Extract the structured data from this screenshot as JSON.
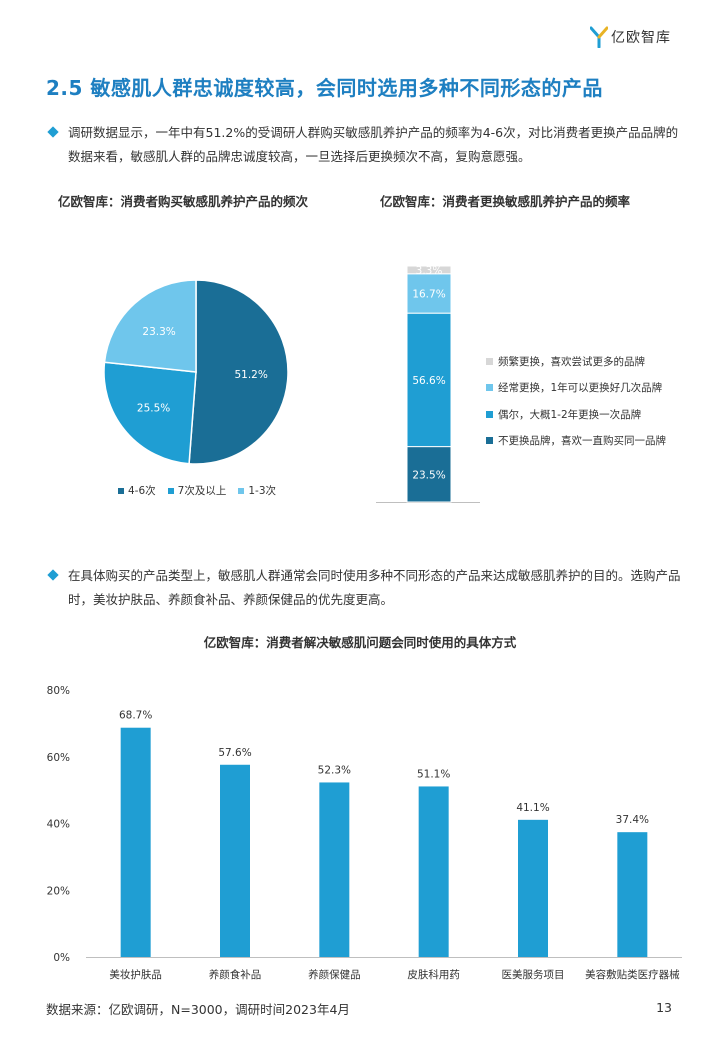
{
  "brand": {
    "logo_text": "亿欧智库",
    "colors": {
      "dark": "#1a6e96",
      "mid": "#1f9ed3",
      "light": "#6fc6ec",
      "pale": "#d7d7d7"
    }
  },
  "page_title": "2.5 敏感肌人群忠诚度较高，会同时选用多种不同形态的产品",
  "para1": "调研数据显示，一年中有51.2%的受调研人群购买敏感肌养护产品的频率为4-6次，对比消费者更换产品品牌的数据来看，敏感肌人群的品牌忠诚度较高，一旦选择后更换频次不高，复购意愿强。",
  "para2": "在具体购买的产品类型上，敏感肌人群通常会同时使用多种不同形态的产品来达成敏感肌养护的目的。选购产品时，美妆护肤品、养颜食补品、养颜保健品的优先度更高。",
  "chart_data": [
    {
      "type": "pie",
      "title": "亿欧智库：消费者购买敏感肌养护产品的频次",
      "categories": [
        "4-6次",
        "7次及以上",
        "1-3次"
      ],
      "values": [
        51.2,
        25.5,
        23.3
      ],
      "labels": [
        "51.2%",
        "25.5%",
        "23.3%"
      ],
      "colors": [
        "#1a6e96",
        "#1f9ed3",
        "#6fc6ec"
      ],
      "legend": "bottom"
    },
    {
      "type": "bar",
      "stacked": true,
      "title": "亿欧智库：消费者更换敏感肌养护产品的频率",
      "series": [
        {
          "name": "不更换品牌，喜欢一直购买同一品牌",
          "value": 23.5,
          "label": "23.5%",
          "color": "#1a6e96"
        },
        {
          "name": "偶尔，大概1-2年更换一次品牌",
          "value": 56.6,
          "label": "56.6%",
          "color": "#1f9ed3"
        },
        {
          "name": "经常更换，1年可以更换好几次品牌",
          "value": 16.7,
          "label": "16.7%",
          "color": "#6fc6ec"
        },
        {
          "name": "频繁更换，喜欢尝试更多的品牌",
          "value": 3.3,
          "label": "3.3%",
          "color": "#d7d7d7"
        }
      ],
      "legend": "right"
    },
    {
      "type": "bar",
      "title": "亿欧智库：消费者解决敏感肌问题会同时使用的具体方式",
      "categories": [
        "美妆护肤品",
        "养颜食补品",
        "养颜保健品",
        "皮肤科用药",
        "医美服务项目",
        "美容敷贴类医疗器械"
      ],
      "values": [
        68.7,
        57.6,
        52.3,
        51.1,
        41.1,
        37.4
      ],
      "labels": [
        "68.7%",
        "57.6%",
        "52.3%",
        "51.1%",
        "41.1%",
        "37.4%"
      ],
      "yticks": [
        "0%",
        "20%",
        "40%",
        "60%",
        "80%"
      ],
      "ylim": [
        0,
        80
      ],
      "color": "#1f9ed3"
    }
  ],
  "footer": {
    "source": "数据来源：亿欧调研，N=3000，调研时间2023年4月",
    "page": "13"
  }
}
